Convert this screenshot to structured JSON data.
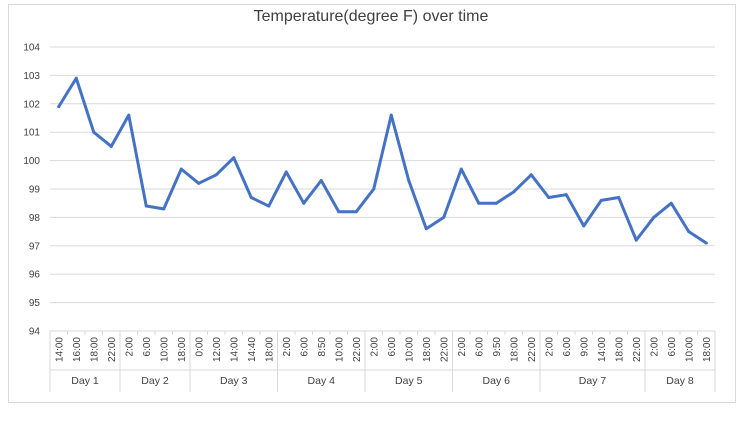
{
  "chart_data": {
    "type": "line",
    "title": "Temperature(degree  F) over time",
    "ylim": [
      94,
      104
    ],
    "yticks": [
      "94",
      "95",
      "96",
      "97",
      "98",
      "99",
      "100",
      "101",
      "102",
      "103",
      "104"
    ],
    "grid": true,
    "line_color": "#4472c4",
    "groups": [
      {
        "label": "Day 1",
        "times": [
          "14:00",
          "16:00",
          "18:00",
          "22:00"
        ],
        "values": [
          101.9,
          102.9,
          101.0,
          100.5
        ]
      },
      {
        "label": "Day 2",
        "times": [
          "2:00",
          "6:00",
          "10:00",
          "18:00"
        ],
        "values": [
          101.6,
          98.4,
          98.3,
          99.7
        ]
      },
      {
        "label": "Day 3",
        "times": [
          "0:00",
          "12:00",
          "14:00",
          "14:40",
          "18:00"
        ],
        "values": [
          99.2,
          99.5,
          100.1,
          98.7,
          98.4
        ]
      },
      {
        "label": "Day 4",
        "times": [
          "2:00",
          "6:00",
          "8:50",
          "10:00",
          "22:00"
        ],
        "values": [
          99.6,
          98.5,
          99.3,
          98.2,
          98.2
        ]
      },
      {
        "label": "Day 5",
        "times": [
          "2:00",
          "6:00",
          "10:00",
          "18:00",
          "22:00"
        ],
        "values": [
          99.0,
          101.6,
          99.3,
          97.6,
          98.0
        ]
      },
      {
        "label": "Day 6",
        "times": [
          "2:00",
          "6:00",
          "9:50",
          "18:00",
          "22:00"
        ],
        "values": [
          99.7,
          98.5,
          98.5,
          98.9,
          99.5
        ]
      },
      {
        "label": "Day 7",
        "times": [
          "2:00",
          "6:00",
          "9:00",
          "14:00",
          "18:00",
          "22:00"
        ],
        "values": [
          98.7,
          98.8,
          97.7,
          98.6,
          98.7,
          97.2
        ]
      },
      {
        "label": "Day 8",
        "times": [
          "2:00",
          "6:00",
          "10:00",
          "18:00"
        ],
        "values": [
          98.0,
          98.5,
          97.5,
          97.1
        ]
      }
    ]
  }
}
